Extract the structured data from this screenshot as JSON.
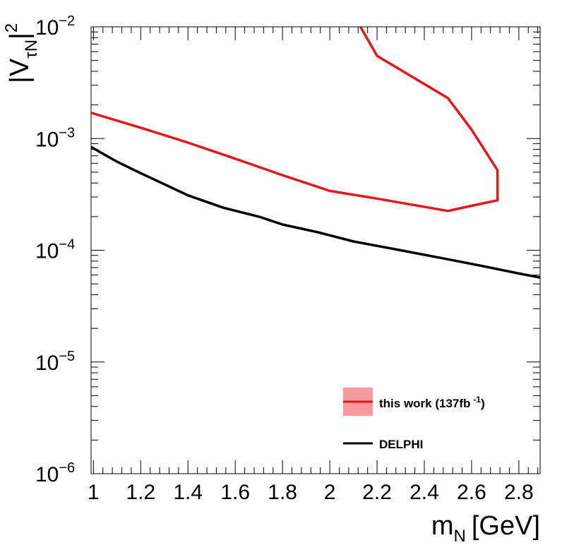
{
  "chart_data": {
    "type": "line",
    "x_axis": {
      "title_main": "m",
      "title_sub": "N",
      "title_unit": "[GeV]",
      "range": [
        0.99,
        2.89
      ],
      "scale": "linear",
      "tick_labels": [
        "1",
        "1.2",
        "1.4",
        "1.6",
        "1.8",
        "2",
        "2.2",
        "2.4",
        "2.6",
        "2.8"
      ]
    },
    "y_axis": {
      "title_pre": "|V",
      "title_sub": "τN",
      "title_post": "|",
      "title_sup": "2",
      "range": [
        1e-06,
        0.01
      ],
      "scale": "log",
      "tick_labels": [
        {
          "value": 1e-06,
          "base": "10",
          "exp": "−6"
        },
        {
          "value": 1e-05,
          "base": "10",
          "exp": "−5"
        },
        {
          "value": 0.0001,
          "base": "10",
          "exp": "−4"
        },
        {
          "value": 0.001,
          "base": "10",
          "exp": "−3"
        },
        {
          "value": 0.01,
          "base": "10",
          "exp": "−2"
        }
      ]
    },
    "grid": false,
    "legend_position": "bottom-right",
    "series": [
      {
        "name": "this work (137fb",
        "name_sup": "-1",
        "name_close": ")",
        "color": "#e8141a",
        "band_color": "#f99a9c",
        "points": [
          [
            0.99,
            0.0017
          ],
          [
            1.2,
            0.00125
          ],
          [
            1.4,
            0.00092
          ],
          [
            1.6,
            0.00066
          ],
          [
            1.8,
            0.00047
          ],
          [
            2.0,
            0.00034
          ],
          [
            2.2,
            0.00029
          ],
          [
            2.5,
            0.000225
          ],
          [
            2.6,
            0.00025
          ],
          [
            2.71,
            0.00028
          ],
          [
            2.71,
            0.00052
          ],
          [
            2.6,
            0.0012
          ],
          [
            2.5,
            0.0023
          ],
          [
            2.2,
            0.0055
          ],
          [
            2.13,
            0.01
          ]
        ]
      },
      {
        "name": "DELPHI",
        "color": "#000000",
        "points": [
          [
            0.99,
            0.00084
          ],
          [
            1.1,
            0.00062
          ],
          [
            1.2,
            0.00049
          ],
          [
            1.3,
            0.00039
          ],
          [
            1.4,
            0.00031
          ],
          [
            1.55,
            0.00024
          ],
          [
            1.7,
            0.0002
          ],
          [
            1.8,
            0.00017
          ],
          [
            1.95,
            0.000145
          ],
          [
            2.1,
            0.00012
          ],
          [
            2.3,
            0.0001
          ],
          [
            2.5,
            8.3e-05
          ],
          [
            2.65,
            7.2e-05
          ],
          [
            2.8,
            6.2e-05
          ],
          [
            2.89,
            5.7e-05
          ]
        ]
      }
    ]
  }
}
